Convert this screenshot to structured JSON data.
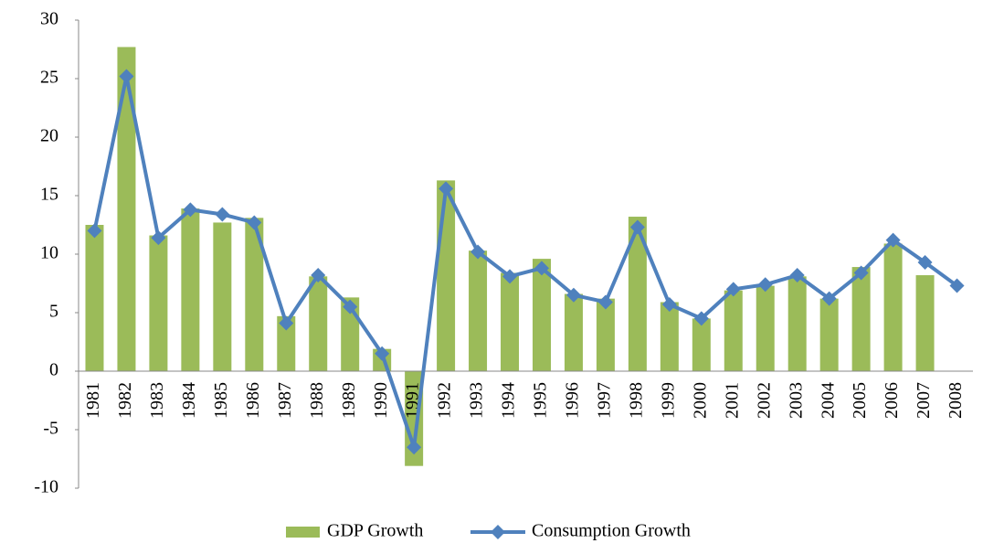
{
  "chart_data": {
    "type": "bar",
    "categories": [
      "1981",
      "1982",
      "1983",
      "1984",
      "1985",
      "1986",
      "1987",
      "1988",
      "1989",
      "1990",
      "1991",
      "1992",
      "1993",
      "1994",
      "1995",
      "1996",
      "1997",
      "1998",
      "1999",
      "2000",
      "2001",
      "2002",
      "2003",
      "2004",
      "2005",
      "2006",
      "2007",
      "2008"
    ],
    "series": [
      {
        "name": "GDP Growth",
        "type": "bar",
        "color": "#9bbb59",
        "values": [
          12.5,
          27.7,
          11.6,
          13.9,
          12.7,
          13.1,
          4.7,
          8.1,
          6.3,
          1.9,
          -8.1,
          16.3,
          10.3,
          8.4,
          9.6,
          6.6,
          6.2,
          13.2,
          5.9,
          4.5,
          6.9,
          7.3,
          8.1,
          6.2,
          8.9,
          10.9,
          8.2,
          null
        ]
      },
      {
        "name": "Consumption Growth",
        "type": "line",
        "color": "#4f81bd",
        "values": [
          12.0,
          25.2,
          11.4,
          13.8,
          13.4,
          12.7,
          4.1,
          8.2,
          5.5,
          1.5,
          -6.5,
          15.6,
          10.2,
          8.1,
          8.8,
          6.5,
          5.9,
          12.3,
          5.7,
          4.5,
          7.0,
          7.4,
          8.2,
          6.2,
          8.4,
          11.2,
          9.3,
          7.3
        ]
      }
    ],
    "ylim": [
      -10,
      30
    ],
    "yticks": [
      -10,
      -5,
      0,
      5,
      10,
      15,
      20,
      25,
      30
    ],
    "grid": false,
    "legend": "bottom"
  }
}
